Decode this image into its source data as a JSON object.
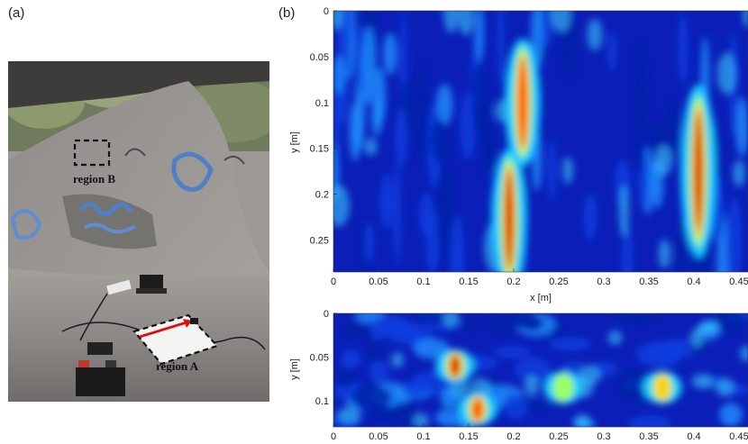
{
  "panel_a": {
    "label": "(a)",
    "annotations": [
      {
        "label": "region B"
      },
      {
        "label": "region A"
      }
    ]
  },
  "panel_b": {
    "label": "(b)"
  },
  "colors": {
    "jet_low": "#00008f",
    "jet_mid": "#00ffff",
    "jet_high": "#ff0000",
    "concrete": "#8a8784",
    "graffiti": "#4f7fc7"
  },
  "chart_data": [
    {
      "type": "heatmap",
      "title": "",
      "xlabel": "x [m]",
      "ylabel": "y [m]",
      "x_ticks": [
        "0",
        "0.05",
        "0.1",
        "0.15",
        "0.2",
        "0.25",
        "0.3",
        "0.35",
        "0.4",
        "0.45"
      ],
      "y_ticks": [
        "0",
        "0.05",
        "0.1",
        "0.15",
        "0.2",
        "0.25"
      ],
      "xlim": [
        0,
        0.46
      ],
      "ylim": [
        0,
        0.285
      ],
      "colormap": "jet",
      "features": [
        {
          "x": 0.195,
          "y_range": [
            0.17,
            0.285
          ],
          "intensity": 1.0
        },
        {
          "x": 0.21,
          "y_range": [
            0.05,
            0.15
          ],
          "intensity": 0.9
        },
        {
          "x": 0.405,
          "y_range": [
            0.1,
            0.25
          ],
          "intensity": 0.95
        }
      ]
    },
    {
      "type": "heatmap",
      "title": "",
      "xlabel": "",
      "ylabel": "y [m]",
      "x_ticks": [
        "0",
        "0.05",
        "0.1",
        "0.15",
        "0.2",
        "0.25",
        "0.3",
        "0.35",
        "0.4",
        "0.45"
      ],
      "y_ticks": [
        "0",
        "0.05",
        "0.1"
      ],
      "xlim": [
        0,
        0.46
      ],
      "ylim": [
        0,
        0.13
      ],
      "colormap": "jet",
      "features": [
        {
          "x": 0.135,
          "y": 0.06,
          "intensity": 1.0
        },
        {
          "x": 0.16,
          "y": 0.11,
          "intensity": 0.9
        },
        {
          "x": 0.255,
          "y": 0.085,
          "intensity": 0.6
        },
        {
          "x": 0.365,
          "y": 0.085,
          "intensity": 0.8
        }
      ]
    }
  ]
}
